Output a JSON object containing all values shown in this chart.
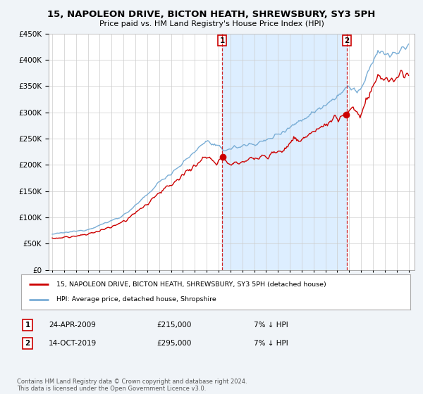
{
  "title": "15, NAPOLEON DRIVE, BICTON HEATH, SHREWSBURY, SY3 5PH",
  "subtitle": "Price paid vs. HM Land Registry's House Price Index (HPI)",
  "ylim": [
    0,
    450000
  ],
  "yticks": [
    0,
    50000,
    100000,
    150000,
    200000,
    250000,
    300000,
    350000,
    400000,
    450000
  ],
  "sale1_year": 2009.31,
  "sale1_price": 215000,
  "sale1_label": "1",
  "sale1_date": "24-APR-2009",
  "sale1_note": "7% ↓ HPI",
  "sale2_year": 2019.79,
  "sale2_price": 295000,
  "sale2_label": "2",
  "sale2_date": "14-OCT-2019",
  "sale2_note": "7% ↓ HPI",
  "legend_entry1": "15, NAPOLEON DRIVE, BICTON HEATH, SHREWSBURY, SY3 5PH (detached house)",
  "legend_entry2": "HPI: Average price, detached house, Shropshire",
  "footer": "Contains HM Land Registry data © Crown copyright and database right 2024.\nThis data is licensed under the Open Government Licence v3.0.",
  "line_color_red": "#cc0000",
  "line_color_blue": "#7aaed6",
  "shade_color": "#ddeeff",
  "background_color": "#f0f4f8",
  "plot_bg": "#ffffff",
  "grid_color": "#cccccc"
}
